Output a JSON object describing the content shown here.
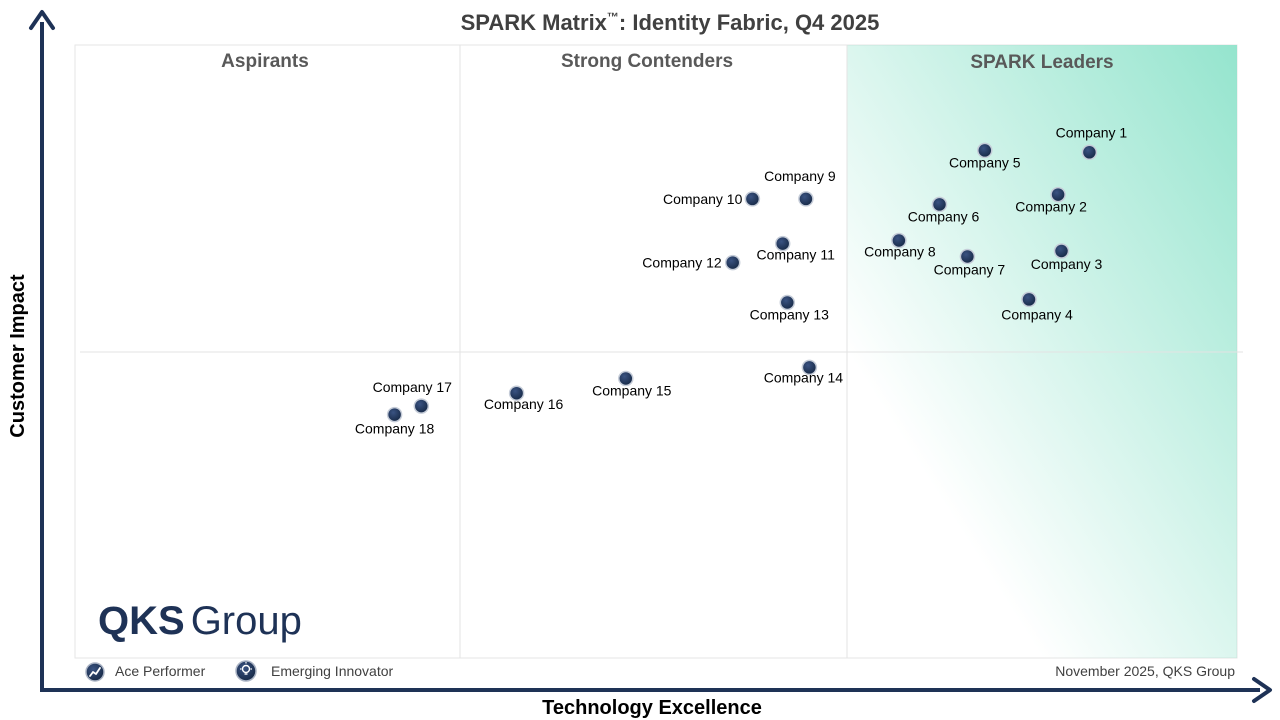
{
  "chart_data": {
    "type": "scatter",
    "title": "SPARK Matrix",
    "title_mark": "™",
    "title_suffix": ": Identity Fabric, Q4 2025",
    "xlabel": "Technology Excellence",
    "ylabel": "Customer Impact",
    "xlim": [
      0,
      100
    ],
    "ylim": [
      0,
      100
    ],
    "quadrants": [
      "Aspirants",
      "Strong Contenders",
      "SPARK Leaders"
    ],
    "grid": false,
    "points": [
      {
        "label": "Company 1",
        "x": 87.3,
        "y": 82.5
      },
      {
        "label": "Company 2",
        "x": 84.6,
        "y": 75.6
      },
      {
        "label": "Company 3",
        "x": 84.9,
        "y": 66.4
      },
      {
        "label": "Company 4",
        "x": 82.1,
        "y": 58.5
      },
      {
        "label": "Company 5",
        "x": 78.3,
        "y": 82.8
      },
      {
        "label": "Company 6",
        "x": 74.4,
        "y": 74.0
      },
      {
        "label": "Company 7",
        "x": 76.8,
        "y": 65.5
      },
      {
        "label": "Company 8",
        "x": 70.9,
        "y": 68.1
      },
      {
        "label": "Company 9",
        "x": 62.9,
        "y": 74.9
      },
      {
        "label": "Company 10",
        "x": 58.3,
        "y": 74.9
      },
      {
        "label": "Company 11",
        "x": 60.9,
        "y": 67.6
      },
      {
        "label": "Company 12",
        "x": 56.6,
        "y": 64.5
      },
      {
        "label": "Company 13",
        "x": 61.3,
        "y": 58.0
      },
      {
        "label": "Company 14",
        "x": 63.2,
        "y": 47.4
      },
      {
        "label": "Company 15",
        "x": 47.4,
        "y": 45.6
      },
      {
        "label": "Company 16",
        "x": 38.0,
        "y": 43.2
      },
      {
        "label": "Company 17",
        "x": 29.8,
        "y": 41.1
      },
      {
        "label": "Company 18",
        "x": 27.5,
        "y": 39.7
      }
    ]
  },
  "legend": {
    "items": [
      {
        "label": "Ace Performer",
        "icon": "trend-up-icon"
      },
      {
        "label": "Emerging Innovator",
        "icon": "lightbulb-icon"
      }
    ]
  },
  "footer": {
    "credit": "November 2025, QKS Group"
  },
  "logo": {
    "text_bold": "QKS",
    "text_regular": "Group"
  },
  "colors": {
    "axis": "#1e3256",
    "point": "#1e3256",
    "leaders_gradient": "#8fe3cb",
    "divider": "#e3e3e3"
  }
}
